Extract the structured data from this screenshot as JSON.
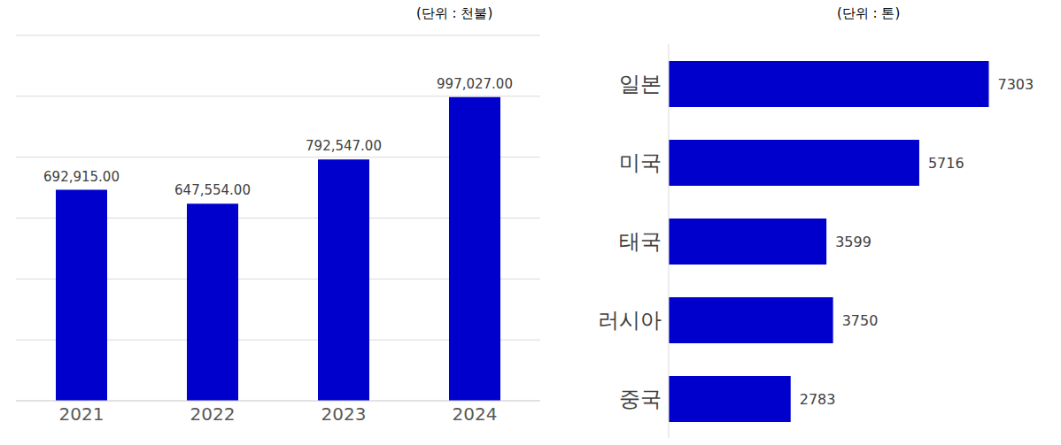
{
  "chart_data": [
    {
      "type": "bar",
      "subtitle": "(단위 : 천불)",
      "categories": [
        "2021",
        "2022",
        "2023",
        "2024"
      ],
      "values": [
        692915,
        647554,
        792547,
        997027
      ],
      "value_labels": [
        "692,915.00",
        "647,554.00",
        "792,547.00",
        "997,027.00"
      ],
      "color": "#0000cc",
      "ylim": [
        0,
        1200000
      ],
      "yticks": [
        0,
        200000,
        400000,
        600000,
        800000,
        1000000,
        1200000
      ],
      "grid": true,
      "data_labels": true,
      "tick_labels": "x"
    },
    {
      "type": "bar",
      "subtitle": "(단위 : 톤)",
      "orientation": "horizontal",
      "categories": [
        "일본",
        "미국",
        "태국",
        "러시아",
        "중국"
      ],
      "values": [
        7303,
        5716,
        3599,
        3750,
        2783
      ],
      "color": "#0000cc",
      "xlim": [
        0,
        8000
      ],
      "grid": false,
      "data_labels": true,
      "tick_labels": "y"
    }
  ]
}
